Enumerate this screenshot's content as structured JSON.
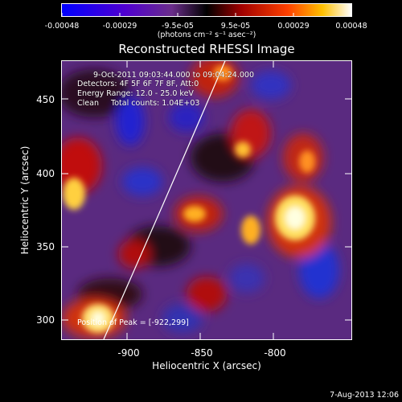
{
  "colorbar": {
    "ticks": [
      "-0.00048",
      "-0.00029",
      "-9.5e-05",
      "9.5e-05",
      "0.00029",
      "0.00048"
    ],
    "unit": "(photons cm⁻² s⁻¹ asec⁻²)",
    "colors": [
      "#0000ff",
      "#5a00c8",
      "#6a2d8a",
      "#000000",
      "#b00000",
      "#ff6000",
      "#ffd000",
      "#ffffff"
    ]
  },
  "title": "Reconstructed RHESSI Image",
  "info": {
    "time_range": "9-Oct-2011 09:03:44.000 to 09:04:24.000",
    "detectors": "Detectors: 4F 5F 6F 7F 8F, Att:0",
    "energy": "Energy Range: 12.0 - 25.0 keV",
    "clean": "Clean     Total counts: 1.04E+03",
    "peak": "Position of Peak = [-922,299]"
  },
  "axes": {
    "xlabel": "Heliocentric X (arcsec)",
    "ylabel": "Heliocentric Y (arcsec)",
    "xticks": [
      "-900",
      "-850",
      "-800"
    ],
    "yticks": [
      "450",
      "400",
      "350",
      "300"
    ]
  },
  "datestamp": "7-Aug-2013 12:06"
}
